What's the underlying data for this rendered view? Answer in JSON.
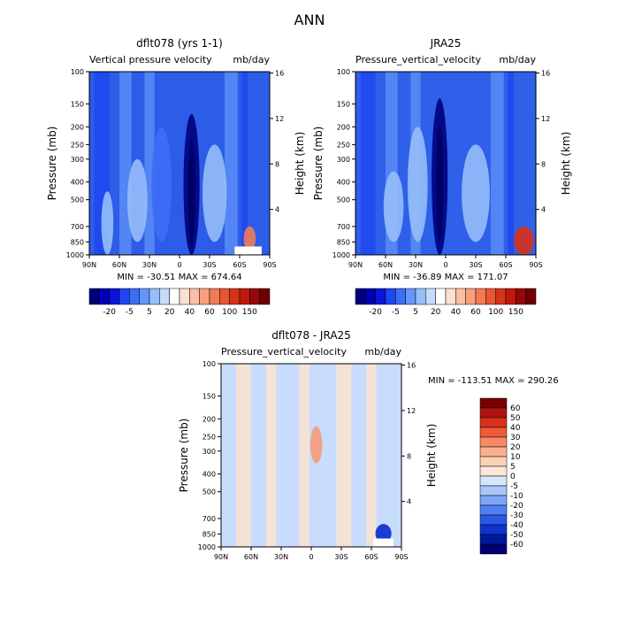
{
  "page_title": "ANN",
  "colors": {
    "neg_scale": [
      "#00007d",
      "#0000b4",
      "#0a14dc",
      "#1e46f0",
      "#3c6ef5",
      "#6496fa",
      "#96befa",
      "#c3dcfc",
      "#ffffff"
    ],
    "pos_scale": [
      "#fde0d0",
      "#fbbfa5",
      "#f8a07e",
      "#f37a58",
      "#e85532",
      "#d63319",
      "#c0180c",
      "#96060a",
      "#6e0000"
    ],
    "blank": "#ffffff"
  },
  "chart_data": [
    {
      "type": "heatmap",
      "id": "model",
      "title": "dflt078 (yrs 1-1)",
      "subtitle_left": "Vertical pressure velocity",
      "units": "mb/day",
      "ylabel": "Pressure (mb)",
      "ylabel_right": "Height (km)",
      "x_ticks": [
        "90N",
        "60N",
        "30N",
        "0",
        "30S",
        "60S",
        "90S"
      ],
      "y_ticks": [
        "100",
        "150",
        "200",
        "250",
        "300",
        "400",
        "500",
        "700",
        "850",
        "1000"
      ],
      "y2_ticks": [
        "16",
        "12",
        "8",
        "4"
      ],
      "stats": "MIN = -30.51   MAX = 674.64",
      "colorbar_labels": [
        "-20",
        "-5",
        "5",
        "20",
        "40",
        "60",
        "100",
        "150"
      ],
      "features": [
        {
          "lat": -12,
          "p_top": 170,
          "p_bot": 1000,
          "width": 8,
          "level": -20
        },
        {
          "lat": 18,
          "p_top": 200,
          "p_bot": 850,
          "width": 10,
          "level": -5
        },
        {
          "lat": -35,
          "p_top": 250,
          "p_bot": 850,
          "width": 12,
          "level": 5
        },
        {
          "lat": 42,
          "p_top": 300,
          "p_bot": 850,
          "width": 10,
          "level": 5
        },
        {
          "lat": 72,
          "p_top": 450,
          "p_bot": 1000,
          "width": 6,
          "level": 5
        },
        {
          "lat": -70,
          "p_top": 700,
          "p_bot": 950,
          "width": 6,
          "level": 60
        }
      ]
    },
    {
      "type": "heatmap",
      "id": "obs",
      "title": "JRA25",
      "subtitle_left": "Pressure_vertical_velocity",
      "units": "mb/day",
      "ylabel": "Pressure (mb)",
      "ylabel_right": "Height (km)",
      "x_ticks": [
        "90N",
        "60N",
        "30N",
        "0",
        "30S",
        "60S",
        "90S"
      ],
      "y_ticks": [
        "100",
        "150",
        "200",
        "250",
        "300",
        "400",
        "500",
        "700",
        "850",
        "1000"
      ],
      "y2_ticks": [
        "16",
        "12",
        "8",
        "4"
      ],
      "stats": "MIN = -36.89   MAX = 171.07",
      "colorbar_labels": [
        "-20",
        "-5",
        "5",
        "20",
        "40",
        "60",
        "100",
        "150"
      ],
      "features": [
        {
          "lat": 6,
          "p_top": 140,
          "p_bot": 1000,
          "width": 8,
          "level": -20
        },
        {
          "lat": 28,
          "p_top": 200,
          "p_bot": 850,
          "width": 10,
          "level": 5
        },
        {
          "lat": -30,
          "p_top": 250,
          "p_bot": 850,
          "width": 14,
          "level": 5
        },
        {
          "lat": 52,
          "p_top": 350,
          "p_bot": 850,
          "width": 10,
          "level": 5
        },
        {
          "lat": -78,
          "p_top": 700,
          "p_bot": 1000,
          "width": 10,
          "level": 100
        }
      ]
    },
    {
      "type": "heatmap",
      "id": "diff",
      "title": "dflt078 - JRA25",
      "subtitle_left": "Pressure_vertical_velocity",
      "units": "mb/day",
      "ylabel": "Pressure (mb)",
      "ylabel_right": "Height (km)",
      "x_ticks": [
        "90N",
        "60N",
        "30N",
        "0",
        "30S",
        "60S",
        "90S"
      ],
      "y_ticks": [
        "100",
        "150",
        "200",
        "250",
        "300",
        "400",
        "500",
        "700",
        "850",
        "1000"
      ],
      "y2_ticks": [
        "16",
        "12",
        "8",
        "4"
      ],
      "stats": "MIN = -113.51   MAX = 290.26",
      "colorbar_labels": [
        "60",
        "50",
        "40",
        "30",
        "20",
        "10",
        "5",
        "0",
        "-5",
        "-10",
        "-20",
        "-30",
        "-40",
        "-50",
        "-60"
      ],
      "features": [
        {
          "lat": -5,
          "p_top": 220,
          "p_bot": 350,
          "width": 6,
          "level": 20
        },
        {
          "lat": -72,
          "p_top": 750,
          "p_bot": 950,
          "width": 8,
          "level": -40
        }
      ]
    }
  ]
}
